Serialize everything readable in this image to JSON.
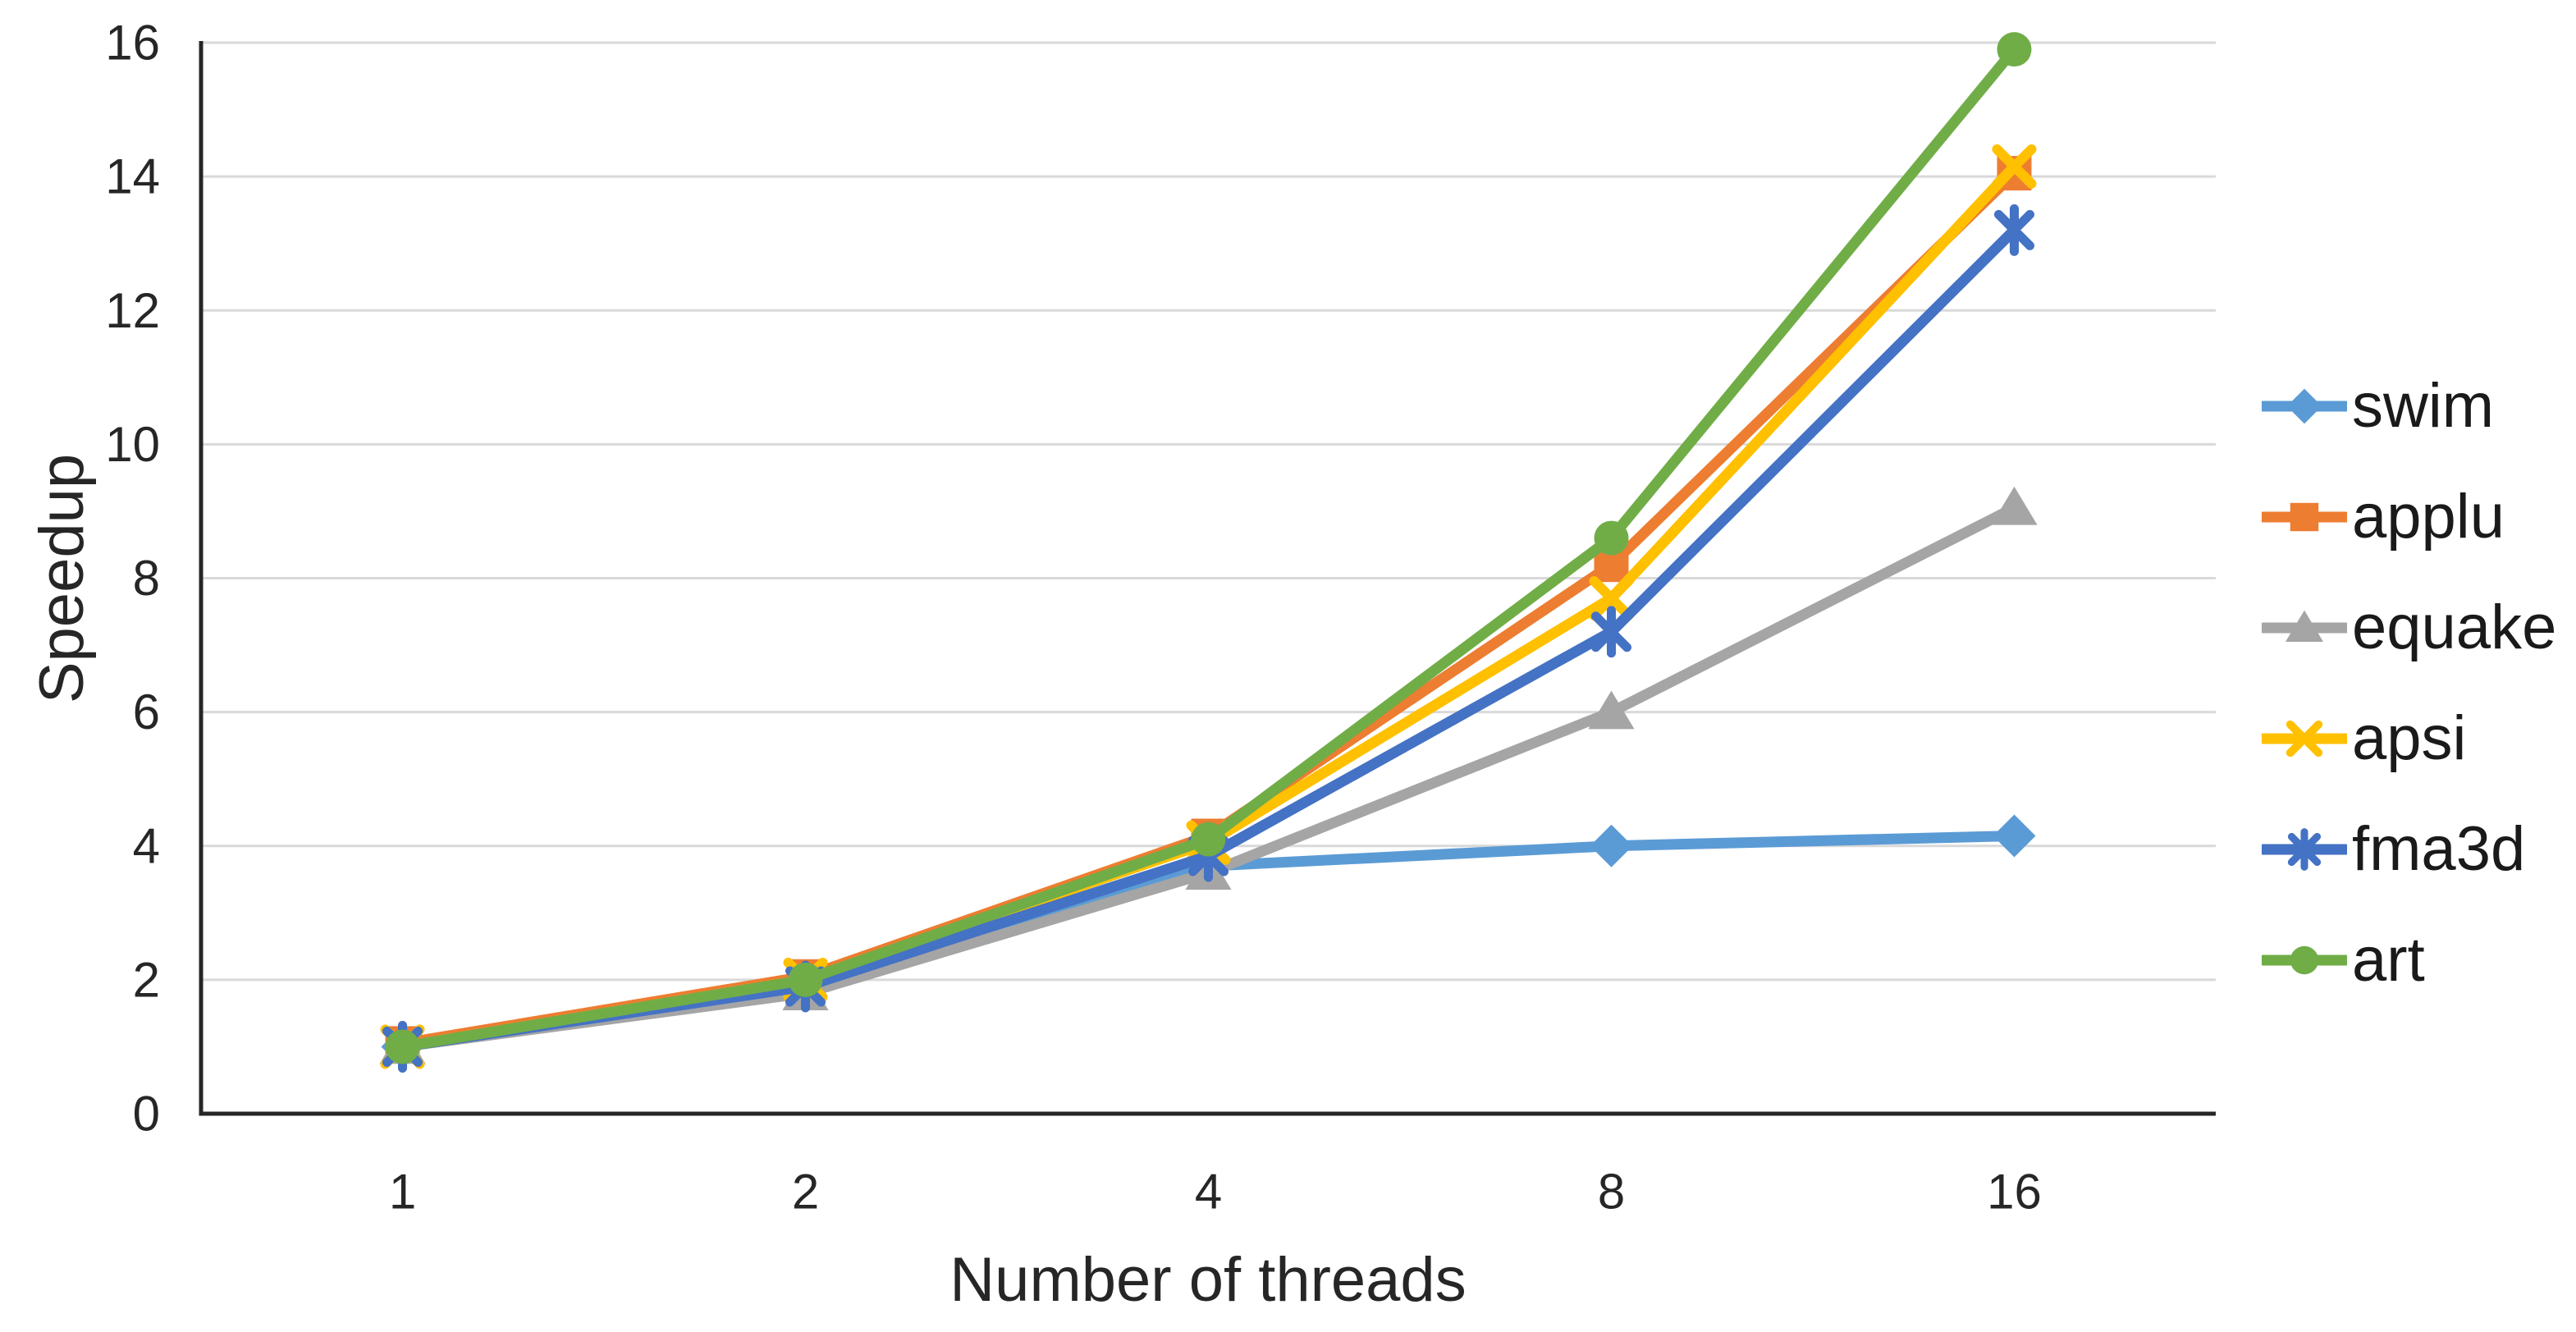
{
  "chart_data": {
    "type": "line",
    "title": "",
    "xlabel": "Number of threads",
    "ylabel": "Speedup",
    "categories": [
      "1",
      "2",
      "4",
      "8",
      "16"
    ],
    "x_axis_type": "categorical",
    "ylim": [
      0,
      16
    ],
    "y_ticks": [
      0,
      2,
      4,
      6,
      8,
      10,
      12,
      14,
      16
    ],
    "grid": "horizontal",
    "legend_position": "right-middle",
    "series": [
      {
        "name": "swim",
        "color": "#5B9BD5",
        "marker": "diamond",
        "values": [
          1.0,
          1.9,
          3.7,
          4.0,
          4.15
        ]
      },
      {
        "name": "applu",
        "color": "#ED7D31",
        "marker": "square",
        "values": [
          1.05,
          2.05,
          4.15,
          8.2,
          14.05
        ]
      },
      {
        "name": "equake",
        "color": "#A5A5A5",
        "marker": "triangle",
        "values": [
          1.0,
          1.8,
          3.6,
          6.0,
          9.05
        ]
      },
      {
        "name": "apsi",
        "color": "#FFC000",
        "marker": "x",
        "values": [
          1.0,
          2.0,
          4.05,
          7.7,
          14.15
        ]
      },
      {
        "name": "fma3d",
        "color": "#4472C4",
        "marker": "asterisk",
        "values": [
          1.0,
          1.9,
          3.85,
          7.2,
          13.2
        ]
      },
      {
        "name": "art",
        "color": "#70AD47",
        "marker": "circle",
        "values": [
          1.0,
          2.0,
          4.1,
          8.6,
          15.9
        ]
      }
    ],
    "colors": {
      "background": "#FFFFFF",
      "gridline": "#D9D9D9",
      "axis_line": "#262626",
      "tick_text": "#262626",
      "axis_title_text": "#262626",
      "legend_text": "#1A1A1A"
    }
  }
}
